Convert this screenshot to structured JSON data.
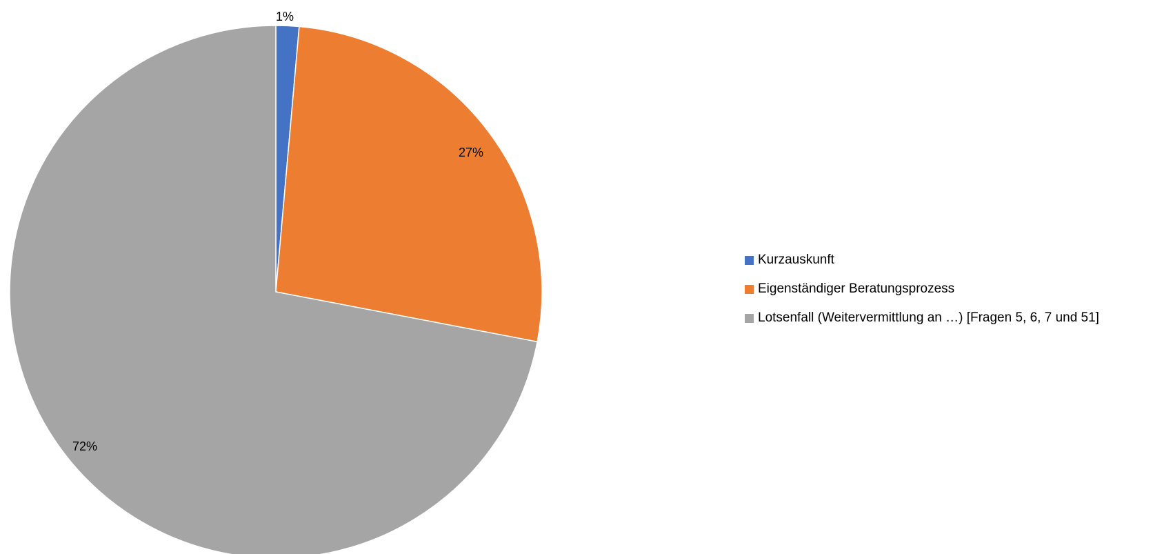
{
  "chart_data": {
    "type": "pie",
    "title": "",
    "start_angle_deg": 0,
    "direction": "clockwise",
    "legend_position": "right",
    "slices": [
      {
        "label": "Kurzauskunft",
        "value": 1.4,
        "data_label": "1%",
        "color": "#4472C4"
      },
      {
        "label": "Eigenständiger Beratungsprozess",
        "value": 26.6,
        "data_label": "27%",
        "color": "#ED7D31"
      },
      {
        "label": "Lotsenfall (Weitervermittlung an …) [Fragen 5, 6, 7 und 51]",
        "value": 72.0,
        "data_label": "72%",
        "color": "#A5A5A5"
      }
    ]
  }
}
